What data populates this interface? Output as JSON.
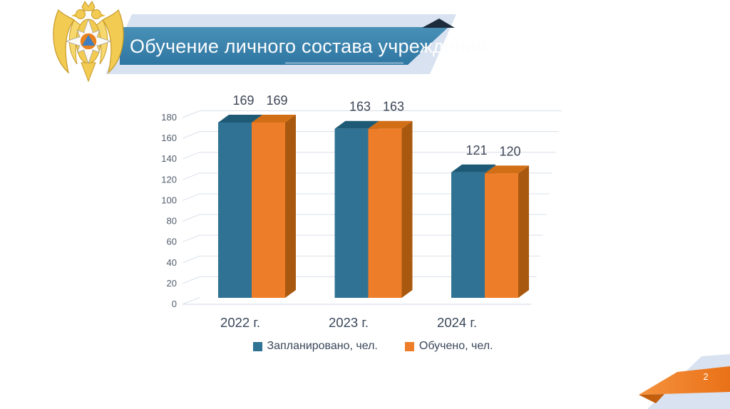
{
  "slide": {
    "title": "Обучение личного состава учреждения",
    "page_number": "2",
    "emblem": "emercom-double-headed-eagle"
  },
  "colors": {
    "band_light_blue": "#d9e2f0",
    "banner_blue_top": "#4890b6",
    "banner_blue_bottom": "#2f77a3",
    "banner_fold_navy": "#1d2c3d",
    "footer_orange_light": "#f5923e",
    "footer_orange_dark": "#e97117",
    "footer_fold_orange": "#c25f0e",
    "planned_front": "#2f7294",
    "planned_top": "#1e5a75",
    "planned_side": "#225e7b",
    "trained_front": "#ee7d2a",
    "trained_top": "#d26f16",
    "trained_side": "#a9590f",
    "gridline": "#d9dfe9",
    "axis_text": "#515c6b",
    "value_label_text": "#3e4757",
    "category_text": "#3a475a",
    "emblem_gold": "#f2cb52",
    "emblem_gold_dark": "#c79a2a",
    "emblem_center_orange": "#e8821e",
    "emblem_center_blue": "#3e7ec1"
  },
  "chart_data": {
    "type": "bar",
    "is_3d": true,
    "categories": [
      "2022 г.",
      "2023 г.",
      "2024 г."
    ],
    "series": [
      {
        "name": "Запланировано, чел.",
        "color_key": "planned",
        "values": [
          169,
          163,
          121
        ]
      },
      {
        "name": "Обучено, чел.",
        "color_key": "trained",
        "values": [
          169,
          163,
          120
        ]
      }
    ],
    "ylim": [
      0,
      180
    ],
    "ytick_step": 20,
    "yticks": [
      0,
      20,
      40,
      60,
      80,
      100,
      120,
      140,
      160,
      180
    ],
    "grid": true,
    "legend_position": "bottom",
    "value_labels": true,
    "title": "",
    "xlabel": "",
    "ylabel": ""
  }
}
